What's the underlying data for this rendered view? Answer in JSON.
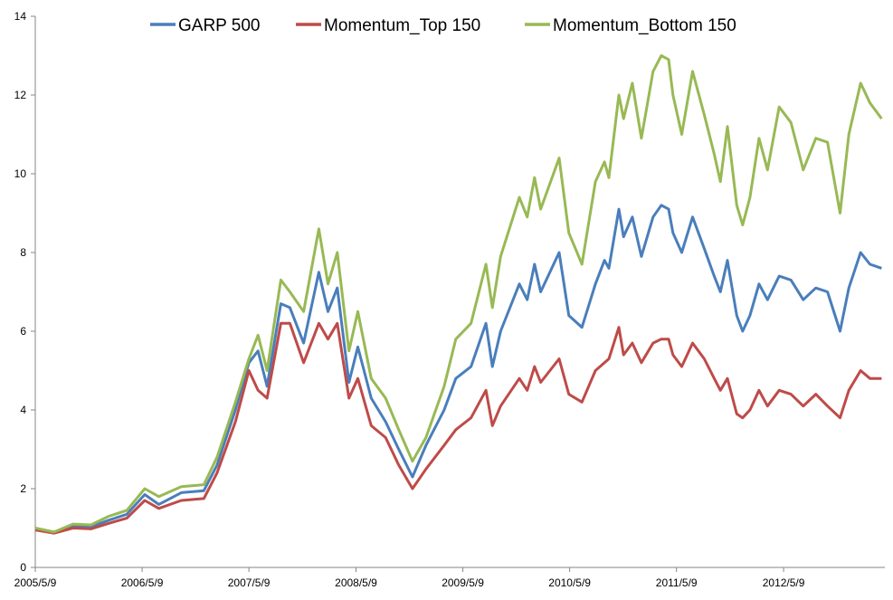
{
  "chart_data": {
    "type": "line",
    "title": "",
    "xlabel": "",
    "ylabel": "",
    "ylim": [
      0,
      14
    ],
    "yticks": [
      0,
      2,
      4,
      6,
      8,
      10,
      12,
      14
    ],
    "ytick_labels": [
      "0",
      "2",
      "4",
      "6",
      "8",
      "10",
      "12",
      "14"
    ],
    "xlim": [
      "2005-05-09",
      "2013-04-20"
    ],
    "xticks": [
      "2005-05-09",
      "2006-05-09",
      "2007-05-09",
      "2008-05-09",
      "2009-05-09",
      "2010-05-09",
      "2011-05-09",
      "2012-05-09"
    ],
    "xtick_labels": [
      "2005/5/9",
      "2006/5/9",
      "2007/5/9",
      "2008/5/9",
      "2009/5/9",
      "2010/5/9",
      "2011/5/9",
      "2012/5/9"
    ],
    "grid": false,
    "legend_position": "top",
    "x": [
      "2005-05-09",
      "2005-07-12",
      "2005-09-15",
      "2005-11-15",
      "2006-01-15",
      "2006-03-18",
      "2006-05-18",
      "2006-07-05",
      "2006-09-20",
      "2006-12-06",
      "2007-01-20",
      "2007-03-24",
      "2007-05-09",
      "2007-06-09",
      "2007-07-10",
      "2007-08-26",
      "2007-09-26",
      "2007-11-12",
      "2008-01-03",
      "2008-02-03",
      "2008-03-06",
      "2008-04-15",
      "2008-05-15",
      "2008-06-30",
      "2008-08-18",
      "2008-10-02",
      "2008-11-18",
      "2009-01-03",
      "2009-03-06",
      "2009-04-15",
      "2009-06-06",
      "2009-07-27",
      "2009-08-18",
      "2009-09-15",
      "2009-11-18",
      "2009-12-15",
      "2010-01-09",
      "2010-01-30",
      "2010-04-03",
      "2010-05-06",
      "2010-06-20",
      "2010-08-05",
      "2010-09-05",
      "2010-09-20",
      "2010-10-24",
      "2010-11-09",
      "2010-12-09",
      "2011-01-09",
      "2011-02-18",
      "2011-03-18",
      "2011-04-12",
      "2011-04-27",
      "2011-05-27",
      "2011-07-03",
      "2011-08-12",
      "2011-09-15",
      "2011-10-06",
      "2011-10-30",
      "2011-12-01",
      "2011-12-21",
      "2012-01-15",
      "2012-02-15",
      "2012-03-15",
      "2012-04-24",
      "2012-06-03",
      "2012-07-15",
      "2012-08-27",
      "2012-10-06",
      "2012-11-18",
      "2012-12-18",
      "2013-01-27",
      "2013-02-28",
      "2013-04-09"
    ],
    "series": [
      {
        "name": "GARP 500",
        "color": "#4a7ebb",
        "values": [
          0.97,
          0.88,
          1.05,
          1.03,
          1.2,
          1.35,
          1.85,
          1.6,
          1.9,
          1.95,
          2.6,
          4.0,
          5.2,
          5.5,
          4.6,
          6.7,
          6.6,
          5.7,
          7.5,
          6.5,
          7.1,
          4.7,
          5.6,
          4.3,
          3.7,
          3.0,
          2.3,
          3.1,
          4.0,
          4.8,
          5.1,
          6.2,
          5.1,
          6.0,
          7.2,
          6.8,
          7.7,
          7.0,
          8.0,
          6.4,
          6.1,
          7.2,
          7.8,
          7.6,
          9.1,
          8.4,
          8.9,
          7.9,
          8.9,
          9.2,
          9.1,
          8.5,
          8.0,
          8.9,
          8.1,
          7.4,
          7.0,
          7.8,
          6.4,
          6.0,
          6.4,
          7.2,
          6.8,
          7.4,
          7.3,
          6.8,
          7.1,
          7.0,
          6.0,
          7.1,
          8.0,
          7.7,
          7.6
        ]
      },
      {
        "name": "Momentum_Top 150",
        "color": "#be4b48",
        "values": [
          0.95,
          0.87,
          1.0,
          0.98,
          1.12,
          1.25,
          1.7,
          1.5,
          1.7,
          1.75,
          2.4,
          3.7,
          5.0,
          4.5,
          4.3,
          6.2,
          6.2,
          5.2,
          6.2,
          5.8,
          6.2,
          4.3,
          4.8,
          3.6,
          3.3,
          2.6,
          2.0,
          2.5,
          3.1,
          3.5,
          3.8,
          4.5,
          3.6,
          4.1,
          4.8,
          4.5,
          5.1,
          4.7,
          5.3,
          4.4,
          4.2,
          5.0,
          5.2,
          5.3,
          6.1,
          5.4,
          5.7,
          5.2,
          5.7,
          5.8,
          5.8,
          5.4,
          5.1,
          5.7,
          5.3,
          4.8,
          4.5,
          4.8,
          3.9,
          3.8,
          4.0,
          4.5,
          4.1,
          4.5,
          4.4,
          4.1,
          4.4,
          4.1,
          3.8,
          4.5,
          5.0,
          4.8,
          4.8
        ]
      },
      {
        "name": "Momentum_Bottom 150",
        "color": "#98b954",
        "values": [
          1.0,
          0.9,
          1.1,
          1.08,
          1.3,
          1.45,
          2.0,
          1.8,
          2.05,
          2.1,
          2.8,
          4.2,
          5.3,
          5.9,
          5.0,
          7.3,
          7.0,
          6.5,
          8.6,
          7.2,
          8.0,
          5.5,
          6.5,
          4.8,
          4.3,
          3.5,
          2.7,
          3.3,
          4.6,
          5.8,
          6.2,
          7.7,
          6.6,
          7.9,
          9.4,
          8.9,
          9.9,
          9.1,
          10.4,
          8.5,
          7.7,
          9.8,
          10.3,
          9.9,
          12.0,
          11.4,
          12.3,
          10.9,
          12.6,
          13.0,
          12.9,
          12.0,
          11.0,
          12.6,
          11.5,
          10.5,
          9.8,
          11.2,
          9.2,
          8.7,
          9.4,
          10.9,
          10.1,
          11.7,
          11.3,
          10.1,
          10.9,
          10.8,
          9.0,
          11.0,
          12.3,
          11.8,
          11.4
        ]
      }
    ]
  }
}
